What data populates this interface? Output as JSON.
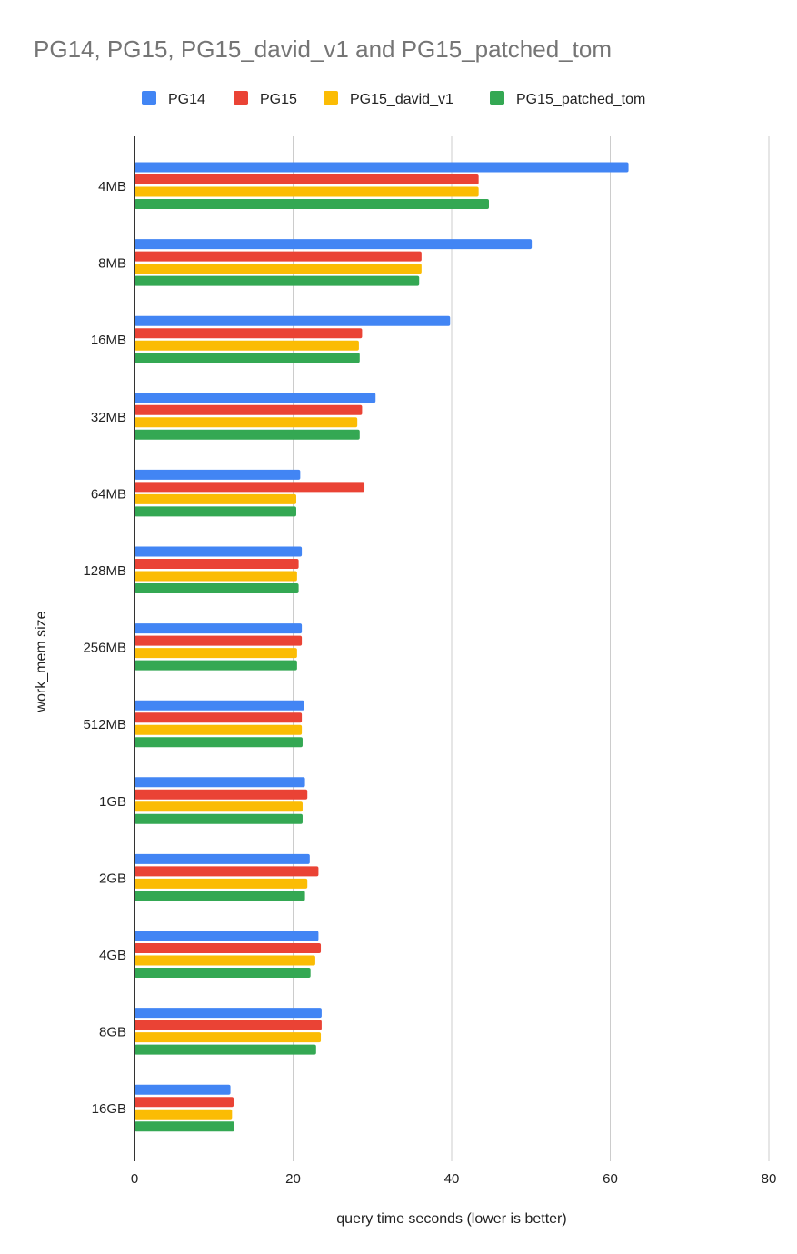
{
  "chart_data": {
    "type": "bar",
    "orientation": "horizontal",
    "title": "PG14, PG15, PG15_david_v1 and PG15_patched_tom",
    "xlabel": "query time seconds (lower is better)",
    "ylabel": "work_mem size",
    "xlim": [
      0,
      80
    ],
    "xticks": [
      0,
      20,
      40,
      60,
      80
    ],
    "grid": true,
    "legend": "top",
    "categories": [
      "4MB",
      "8MB",
      "16MB",
      "32MB",
      "64MB",
      "128MB",
      "256MB",
      "512MB",
      "1GB",
      "2GB",
      "4GB",
      "8GB",
      "16GB"
    ],
    "series": [
      {
        "name": "PG14",
        "color": "#4285f4",
        "values": [
          62.3,
          50.1,
          39.8,
          30.4,
          20.9,
          21.1,
          21.1,
          21.4,
          21.5,
          22.1,
          23.2,
          23.6,
          12.1
        ]
      },
      {
        "name": "PG15",
        "color": "#ea4335",
        "values": [
          43.4,
          36.2,
          28.7,
          28.7,
          29.0,
          20.7,
          21.1,
          21.1,
          21.8,
          23.2,
          23.5,
          23.6,
          12.5
        ]
      },
      {
        "name": "PG15_david_v1",
        "color": "#fbbc04",
        "values": [
          43.4,
          36.2,
          28.3,
          28.1,
          20.4,
          20.5,
          20.5,
          21.1,
          21.2,
          21.8,
          22.8,
          23.5,
          12.3
        ]
      },
      {
        "name": "PG15_patched_tom",
        "color": "#34a853",
        "values": [
          44.7,
          35.9,
          28.4,
          28.4,
          20.4,
          20.7,
          20.5,
          21.2,
          21.2,
          21.5,
          22.2,
          22.9,
          12.6
        ]
      }
    ]
  }
}
